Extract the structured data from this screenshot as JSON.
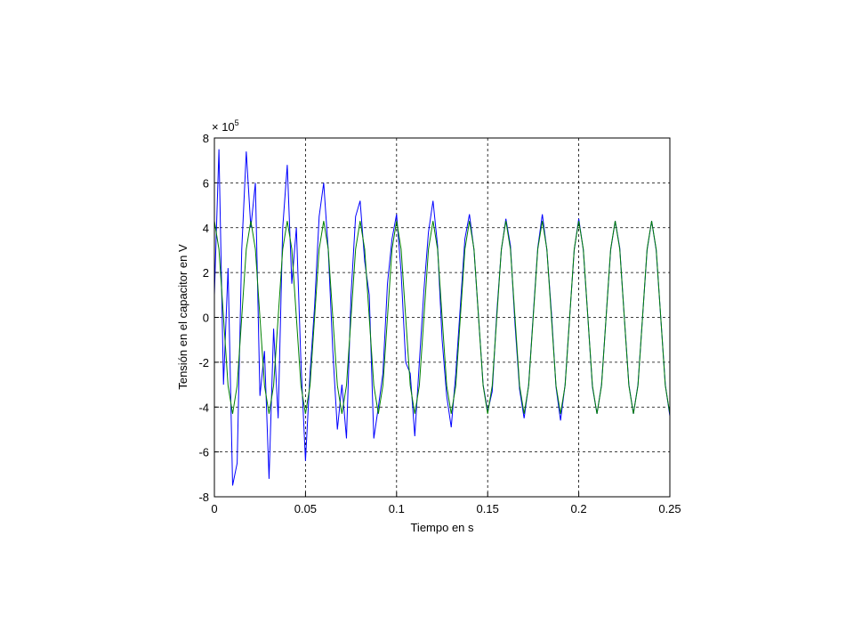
{
  "chart_data": {
    "type": "line",
    "xlabel": "Tiempo en s",
    "ylabel": "Tensión en el capacitor en V",
    "y_scale_label": {
      "base": "× 10",
      "exponent": "5"
    },
    "x": [
      0,
      0.0025,
      0.005,
      0.0075,
      0.01,
      0.0125,
      0.015,
      0.0175,
      0.02,
      0.0225,
      0.025,
      0.0275,
      0.03,
      0.0325,
      0.035,
      0.0375,
      0.04,
      0.0425,
      0.045,
      0.0475,
      0.05,
      0.0525,
      0.055,
      0.0575,
      0.06,
      0.0625,
      0.065,
      0.0675,
      0.07,
      0.0725,
      0.075,
      0.0775,
      0.08,
      0.0825,
      0.085,
      0.0875,
      0.09,
      0.0925,
      0.095,
      0.0975,
      0.1,
      0.1025,
      0.105,
      0.1075,
      0.11,
      0.1125,
      0.115,
      0.1175,
      0.12,
      0.1225,
      0.125,
      0.1275,
      0.13,
      0.1325,
      0.135,
      0.1375,
      0.14,
      0.1425,
      0.145,
      0.1475,
      0.15,
      0.1525,
      0.155,
      0.1575,
      0.16,
      0.1625,
      0.165,
      0.1675,
      0.17,
      0.1725,
      0.175,
      0.1775,
      0.18,
      0.1825,
      0.185,
      0.1875,
      0.19,
      0.1925,
      0.195,
      0.1975,
      0.2,
      0.2025,
      0.205,
      0.2075,
      0.21,
      0.2125,
      0.215,
      0.2175,
      0.22,
      0.2225,
      0.225,
      0.2275,
      0.23,
      0.2325,
      0.235,
      0.2375,
      0.24,
      0.2425,
      0.245,
      0.2475,
      0.25
    ],
    "series": [
      {
        "color": "#0000ff",
        "values": [
          1.0,
          7.5,
          -3.0,
          2.2,
          -7.5,
          -6.5,
          3.0,
          7.4,
          4.0,
          6.0,
          -3.5,
          -1.5,
          -7.2,
          -0.5,
          -4.5,
          4.0,
          6.8,
          1.5,
          4.0,
          -2.0,
          -6.4,
          -2.5,
          0.5,
          4.5,
          6.0,
          3.0,
          -1.5,
          -5.0,
          -3.0,
          -5.4,
          1.0,
          4.5,
          5.2,
          2.5,
          1.0,
          -5.4,
          -4.0,
          -2.5,
          1.5,
          3.5,
          4.6,
          2.0,
          -2.0,
          -2.5,
          -5.3,
          -2.0,
          1.2,
          3.8,
          5.2,
          3.2,
          -1.0,
          -3.5,
          -4.9,
          -2.5,
          0.5,
          3.5,
          4.6,
          3.0,
          0.0,
          -3.0,
          -4.2,
          -3.3,
          0.2,
          3.0,
          4.4,
          3.2,
          -0.3,
          -3.2,
          -4.5,
          -3.0,
          0.1,
          3.1,
          4.6,
          3.0,
          0.2,
          -3.1,
          -4.6,
          -3.0,
          0,
          3.0,
          4.4,
          3.0,
          0,
          -3.1,
          -4.3,
          -3.0,
          0,
          3.0,
          4.3,
          3.1,
          0,
          -3.0,
          -4.3,
          -3.0,
          0,
          3.0,
          4.3,
          3.0,
          0,
          -3.0,
          -4.4
        ]
      },
      {
        "color": "#008000",
        "values": [
          4.3,
          3.04,
          0,
          -3.04,
          -4.3,
          -3.04,
          0,
          3.04,
          4.3,
          3.04,
          0,
          -3.04,
          -4.3,
          -3.04,
          0,
          3.04,
          4.3,
          3.04,
          0,
          -3.04,
          -4.3,
          -3.04,
          0,
          3.04,
          4.3,
          3.04,
          0,
          -3.04,
          -4.3,
          -3.04,
          0,
          3.04,
          4.3,
          3.04,
          0,
          -3.04,
          -4.3,
          -3.04,
          0,
          3.04,
          4.3,
          3.04,
          0,
          -3.04,
          -4.3,
          -3.04,
          0,
          3.04,
          4.3,
          3.04,
          0,
          -3.04,
          -4.3,
          -3.04,
          0,
          3.04,
          4.3,
          3.04,
          0,
          -3.04,
          -4.3,
          -3.04,
          0,
          3.04,
          4.3,
          3.04,
          0,
          -3.04,
          -4.3,
          -3.04,
          0,
          3.04,
          4.3,
          3.04,
          0,
          -3.04,
          -4.3,
          -3.04,
          0,
          3.04,
          4.3,
          3.04,
          0,
          -3.04,
          -4.3,
          -3.04,
          0,
          3.04,
          4.3,
          3.04,
          0,
          -3.04,
          -4.3,
          -3.04,
          0,
          3.04,
          4.3,
          3.04,
          0,
          -3.04,
          -4.3
        ]
      }
    ],
    "xlim": [
      0,
      0.25
    ],
    "xticks": [
      0,
      0.05,
      0.1,
      0.15,
      0.2,
      0.25
    ],
    "ylim": [
      -8,
      8
    ],
    "yticks": [
      -8,
      -6,
      -4,
      -2,
      0,
      2,
      4,
      6,
      8
    ],
    "grid": true
  }
}
